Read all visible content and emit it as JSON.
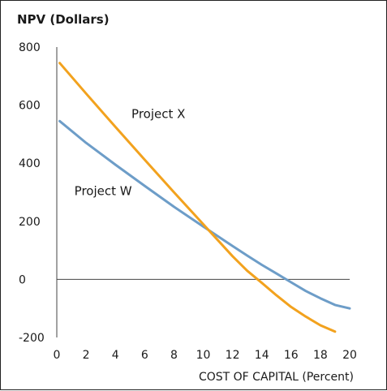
{
  "chart_data": {
    "type": "line",
    "title": "",
    "xlabel": "COST OF CAPITAL (Percent)",
    "ylabel": "NPV (Dollars)",
    "xlim": [
      0,
      20
    ],
    "ylim": [
      -200,
      800
    ],
    "xticks": [
      0,
      2,
      4,
      6,
      8,
      10,
      12,
      14,
      16,
      18,
      20
    ],
    "yticks": [
      800,
      600,
      400,
      200,
      0,
      -200
    ],
    "xtick_labels": [
      "0",
      "2",
      "4",
      "6",
      "8",
      "10",
      "12",
      "14",
      "16",
      "18",
      "20"
    ],
    "ytick_labels": [
      "800",
      "600",
      "400",
      "200",
      "0",
      "-200"
    ],
    "grid": false,
    "series": [
      {
        "name": "Project W",
        "color": "#6d9dc8",
        "x": [
          0.2,
          2,
          4,
          6,
          8,
          10,
          12,
          13,
          14,
          15,
          16,
          17,
          18,
          19,
          20
        ],
        "y": [
          545,
          470,
          395,
          322,
          250,
          182,
          115,
          82,
          50,
          20,
          -10,
          -40,
          -65,
          -88,
          -100
        ]
      },
      {
        "name": "Project X",
        "color": "#f2a21e",
        "x": [
          0.2,
          2,
          4,
          6,
          8,
          10,
          12,
          13,
          14,
          15,
          16,
          17,
          18,
          19
        ],
        "y": [
          745,
          640,
          525,
          412,
          300,
          190,
          80,
          30,
          -12,
          -55,
          -95,
          -128,
          -158,
          -180
        ]
      }
    ],
    "annotations": [
      {
        "text": "Project X",
        "series": "Project X"
      },
      {
        "text": "Project W",
        "series": "Project W"
      }
    ]
  }
}
